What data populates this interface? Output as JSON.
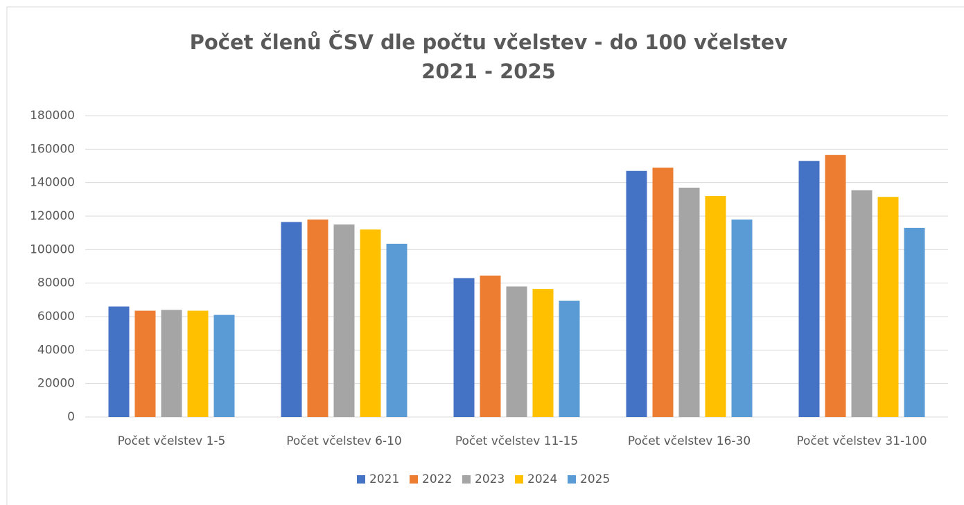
{
  "chart_data": {
    "type": "bar",
    "title": "Počet členů ČSV dle počtu včelstev - do 100 včelstev",
    "subtitle": "2021 - 2025",
    "categories": [
      "Počet včelstev 1-5",
      "Počet včelstev 6-10",
      "Počet včelstev 11-15",
      "Počet včelstev 16-30",
      "Počet včelstev 31-100"
    ],
    "series": [
      {
        "name": "2021",
        "color": "#4472c4",
        "values": [
          66000,
          116500,
          83000,
          147000,
          153000
        ]
      },
      {
        "name": "2022",
        "color": "#ed7d31",
        "values": [
          63500,
          118000,
          84500,
          149000,
          156500
        ]
      },
      {
        "name": "2023",
        "color": "#a5a5a5",
        "values": [
          64000,
          115000,
          78000,
          137000,
          135500
        ]
      },
      {
        "name": "2024",
        "color": "#ffc000",
        "values": [
          63500,
          112000,
          76500,
          132000,
          131500
        ]
      },
      {
        "name": "2025",
        "color": "#5b9bd5",
        "values": [
          61000,
          103500,
          69500,
          118000,
          113000
        ]
      }
    ],
    "ylim": [
      0,
      180000
    ],
    "yticks": [
      0,
      20000,
      40000,
      60000,
      80000,
      100000,
      120000,
      140000,
      160000,
      180000
    ],
    "grid": true,
    "legend": "bottom"
  }
}
